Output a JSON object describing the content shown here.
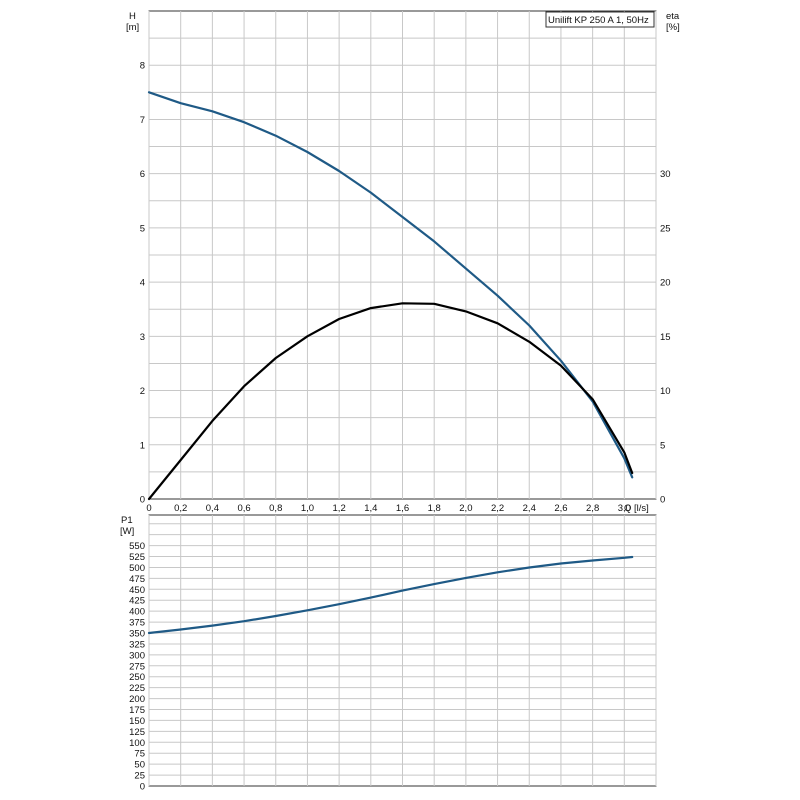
{
  "chart_data": [
    {
      "type": "line",
      "title": "Unilift KP 250 A 1, 50Hz",
      "xlabel": "Q [l/s]",
      "ylabel_left_line1": "H",
      "ylabel_left_line2": "[m]",
      "ylabel_right_line1": "eta",
      "ylabel_right_line2": "[%]",
      "xlim": [
        0,
        3.2
      ],
      "ylim_left": [
        0,
        8
      ],
      "ylim_right": [
        0,
        40
      ],
      "grid": true,
      "x_ticks": [
        "0",
        "0,2",
        "0,4",
        "0,6",
        "0,8",
        "1,0",
        "1,2",
        "1,4",
        "1,6",
        "1,8",
        "2,0",
        "2,2",
        "2,4",
        "2,6",
        "2,8",
        "3,0"
      ],
      "y_ticks_left": [
        "0",
        "1",
        "2",
        "3",
        "4",
        "5",
        "6",
        "7",
        "8"
      ],
      "y_ticks_right": [
        "0",
        "5",
        "10",
        "15",
        "20",
        "25",
        "30"
      ],
      "series": [
        {
          "axis": "left",
          "color": "#1f5a86",
          "x": [
            0,
            0.2,
            0.4,
            0.6,
            0.8,
            1.0,
            1.2,
            1.4,
            1.6,
            1.8,
            2.0,
            2.2,
            2.4,
            2.6,
            2.8,
            3.0,
            3.05
          ],
          "y": [
            7.5,
            7.3,
            7.15,
            6.95,
            6.7,
            6.4,
            6.05,
            5.65,
            5.2,
            4.75,
            4.25,
            3.75,
            3.2,
            2.55,
            1.8,
            0.75,
            0.4
          ]
        },
        {
          "axis": "right",
          "color": "#000000",
          "x": [
            0,
            0.2,
            0.4,
            0.6,
            0.8,
            1.0,
            1.2,
            1.4,
            1.6,
            1.8,
            2.0,
            2.2,
            2.4,
            2.6,
            2.8,
            3.0,
            3.05
          ],
          "y": [
            0,
            3.6,
            7.2,
            10.4,
            13.0,
            15.0,
            16.6,
            17.6,
            18.05,
            18.0,
            17.3,
            16.2,
            14.5,
            12.3,
            9.2,
            4.3,
            2.4
          ]
        }
      ]
    },
    {
      "type": "line",
      "ylabel_line1": "P1",
      "ylabel_line2": "[W]",
      "xlim": [
        0,
        3.2
      ],
      "ylim": [
        0,
        600
      ],
      "grid": true,
      "y_ticks": [
        "0",
        "25",
        "50",
        "75",
        "100",
        "125",
        "150",
        "175",
        "200",
        "225",
        "250",
        "275",
        "300",
        "325",
        "350",
        "375",
        "400",
        "425",
        "450",
        "475",
        "500",
        "525",
        "550"
      ],
      "series": [
        {
          "color": "#1f5a86",
          "x": [
            0,
            0.2,
            0.4,
            0.6,
            0.8,
            1.0,
            1.2,
            1.4,
            1.6,
            1.8,
            2.0,
            2.2,
            2.4,
            2.6,
            2.8,
            3.0,
            3.05
          ],
          "y": [
            350,
            358,
            367,
            377,
            389,
            402,
            416,
            431,
            447,
            462,
            476,
            489,
            500,
            509,
            516,
            522,
            524
          ]
        }
      ]
    }
  ]
}
